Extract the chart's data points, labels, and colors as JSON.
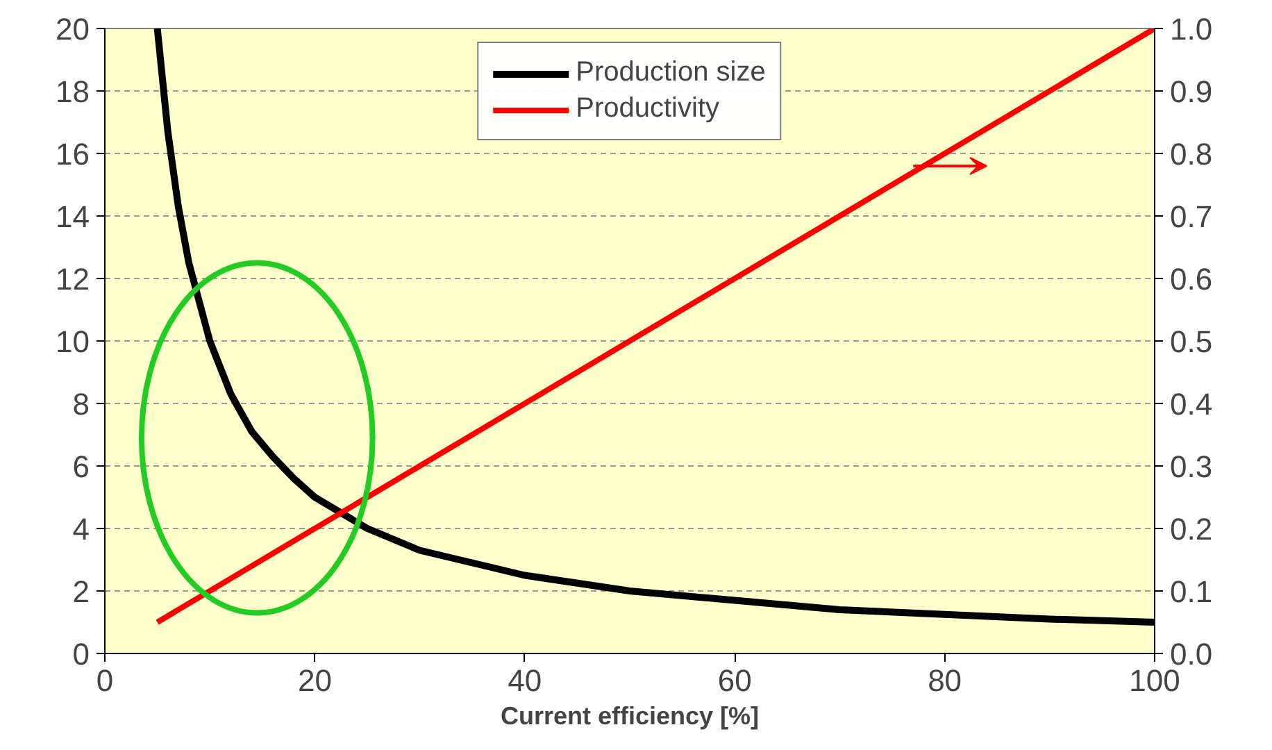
{
  "chart_data": {
    "type": "line",
    "xlabel": "Current efficiency [%]",
    "xlim": [
      0,
      100
    ],
    "xticks": [
      0,
      20,
      40,
      60,
      80,
      100
    ],
    "ylim": [
      0,
      20
    ],
    "yticks": [
      0,
      2,
      4,
      6,
      8,
      10,
      12,
      14,
      16,
      18,
      20
    ],
    "y2lim": [
      0,
      1
    ],
    "y2ticks": [
      {
        "value": 0,
        "label": "0.0"
      },
      0.1,
      0.2,
      0.3,
      0.4,
      0.5,
      0.6,
      0.7,
      0.8,
      0.9,
      {
        "value": 1,
        "label": "1.0"
      }
    ],
    "grid": "y",
    "legend": "top",
    "marker": "none",
    "line_style": "solid",
    "series": [
      {
        "name": "Production size",
        "color": "#000000",
        "x": [
          5,
          6,
          7,
          8,
          10,
          12,
          14,
          16,
          18,
          20,
          25,
          30,
          35,
          40,
          50,
          60,
          70,
          80,
          90,
          100
        ],
        "values": [
          20,
          16.7,
          14.3,
          12.5,
          10,
          8.3,
          7.1,
          6.3,
          5.6,
          5,
          4,
          3.3,
          2.9,
          2.5,
          2,
          1.7,
          1.4,
          1.25,
          1.1,
          1
        ]
      },
      {
        "name": "Productivity",
        "color": "#ff0000",
        "axis": "y2",
        "x": [
          5,
          100
        ],
        "values": [
          0.05,
          1.0
        ]
      }
    ]
  }
}
